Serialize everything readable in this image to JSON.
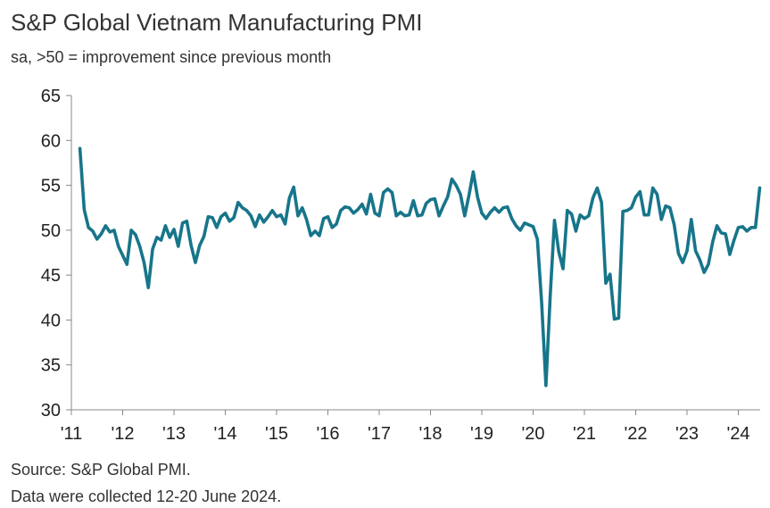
{
  "header": {
    "title": "S&P Global Vietnam Manufacturing PMI",
    "subtitle": "sa, >50 = improvement since previous month"
  },
  "footer": {
    "source": "Source: S&P Global PMI.",
    "note": "Data were collected 12-20 June 2024."
  },
  "colors": {
    "line": "#17758a",
    "axis": "#888888",
    "gridline": "#dddddd"
  },
  "chart_data": {
    "type": "line",
    "title": "S&P Global Vietnam Manufacturing PMI",
    "subtitle": "sa, >50 = improvement since previous month",
    "xlabel": "",
    "ylabel": "",
    "ylim": [
      30,
      65
    ],
    "y_ticks": [
      30,
      35,
      40,
      45,
      50,
      55,
      60,
      65
    ],
    "x_tick_labels": [
      "'11",
      "'12",
      "'13",
      "'14",
      "'15",
      "'16",
      "'17",
      "'18",
      "'19",
      "'20",
      "'21",
      "'22",
      "'23",
      "'24"
    ],
    "x_start": "2011-03",
    "x_end": "2024-06",
    "frequency": "monthly",
    "grid": false,
    "series": [
      {
        "values": [
          59.1,
          52.3,
          50.3,
          49.9,
          49.0,
          49.6,
          50.5,
          49.8,
          50.0,
          48.2,
          47.2,
          46.2,
          50.0,
          49.5,
          48.2,
          46.4,
          43.6,
          47.9,
          49.2,
          48.9,
          50.5,
          49.2,
          50.1,
          48.2,
          50.8,
          51.0,
          48.3,
          46.4,
          48.3,
          49.3,
          51.5,
          51.4,
          50.3,
          51.5,
          51.9,
          51.0,
          51.4,
          53.1,
          52.5,
          52.2,
          51.6,
          50.4,
          51.7,
          50.9,
          51.5,
          52.2,
          51.5,
          51.7,
          50.7,
          53.6,
          54.8,
          51.6,
          52.5,
          51.2,
          49.4,
          49.9,
          49.4,
          51.3,
          51.5,
          50.3,
          50.7,
          52.2,
          52.6,
          52.5,
          51.9,
          52.3,
          52.9,
          51.8,
          54.0,
          51.9,
          51.6,
          54.2,
          54.6,
          54.2,
          51.6,
          52.0,
          51.6,
          51.7,
          53.3,
          51.6,
          51.7,
          53.0,
          53.4,
          53.5,
          51.6,
          52.7,
          53.7,
          55.7,
          55.0,
          54.0,
          51.6,
          53.9,
          56.5,
          53.7,
          51.9,
          51.3,
          52.0,
          52.5,
          52.0,
          52.5,
          52.6,
          51.3,
          50.5,
          50.0,
          50.8,
          50.6,
          50.4,
          49.0,
          41.9,
          32.7,
          42.7,
          51.1,
          47.6,
          45.7,
          52.2,
          51.8,
          49.9,
          51.7,
          51.3,
          51.6,
          53.6,
          54.7,
          53.1,
          44.1,
          45.1,
          40.1,
          40.2,
          52.1,
          52.2,
          52.5,
          53.7,
          54.3,
          51.7,
          51.7,
          54.7,
          54.0,
          51.2,
          52.7,
          52.5,
          50.6,
          47.4,
          46.4,
          47.7,
          51.2,
          47.7,
          46.7,
          45.3,
          46.2,
          48.7,
          50.5,
          49.7,
          49.6,
          47.3,
          48.9,
          50.3,
          50.4,
          49.9,
          50.3,
          50.3,
          54.7
        ]
      }
    ]
  }
}
